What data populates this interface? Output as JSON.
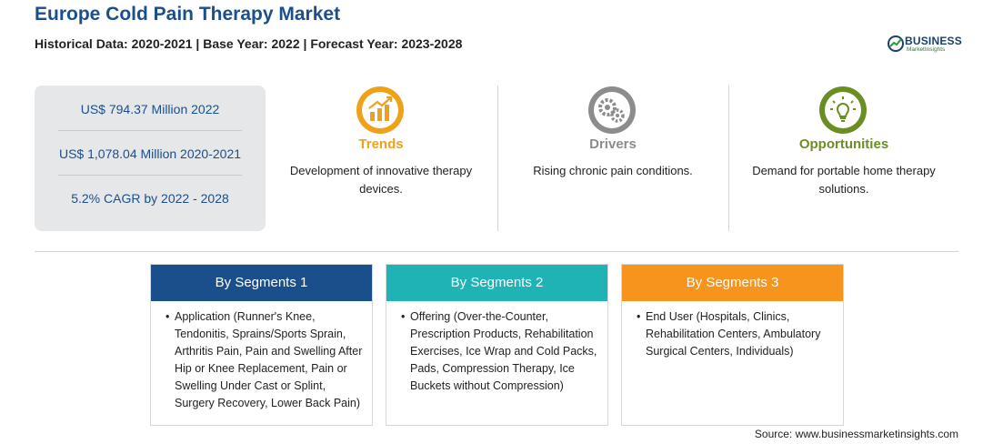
{
  "header": {
    "title": "Europe Cold Pain Therapy Market",
    "subtitle": "Historical Data: 2020-2021 | Base Year: 2022 | Forecast Year: 2023-2028"
  },
  "logo": {
    "name": "BUSINESS",
    "tagline": "MarketInsights"
  },
  "stats": [
    "US$ 794.37 Million 2022",
    "US$ 1,078.04 Million 2020-2021",
    "5.2% CAGR by 2022 - 2028"
  ],
  "columns": {
    "trends": {
      "title": "Trends",
      "text": "Development of innovative therapy devices.",
      "icon": "chart-growth-icon",
      "color": "#f0a11a"
    },
    "drivers": {
      "title": "Drivers",
      "text": "Rising chronic pain conditions.",
      "icon": "gears-icon",
      "color": "#8a8c8e"
    },
    "opportunities": {
      "title": "Opportunities",
      "text": "Demand for portable home therapy solutions.",
      "icon": "lightbulb-icon",
      "color": "#6b8e23"
    }
  },
  "segments": [
    {
      "title": "By Segments 1",
      "bullet": "•",
      "text": "Application (Runner's Knee, Tendonitis, Sprains/Sports Sprain, Arthritis Pain, Pain and Swelling After Hip or Knee Replacement, Pain or Swelling Under Cast or Splint, Surgery Recovery, Lower Back Pain)",
      "color": "#1b4f8c"
    },
    {
      "title": "By Segments 2",
      "bullet": "•",
      "text": "Offering (Over-the-Counter, Prescription Products, Rehabilitation Exercises, Ice Wrap and Cold Packs, Pads, Compression Therapy, Ice Buckets without Compression)",
      "color": "#1fb3b6"
    },
    {
      "title": "By Segments 3",
      "bullet": "•",
      "text": "End User (Hospitals, Clinics, Rehabilitation Centers, Ambulatory Surgical Centers, Individuals)",
      "color": "#f7941d"
    }
  ],
  "source": "Source: www.businessmarketinsights.com"
}
